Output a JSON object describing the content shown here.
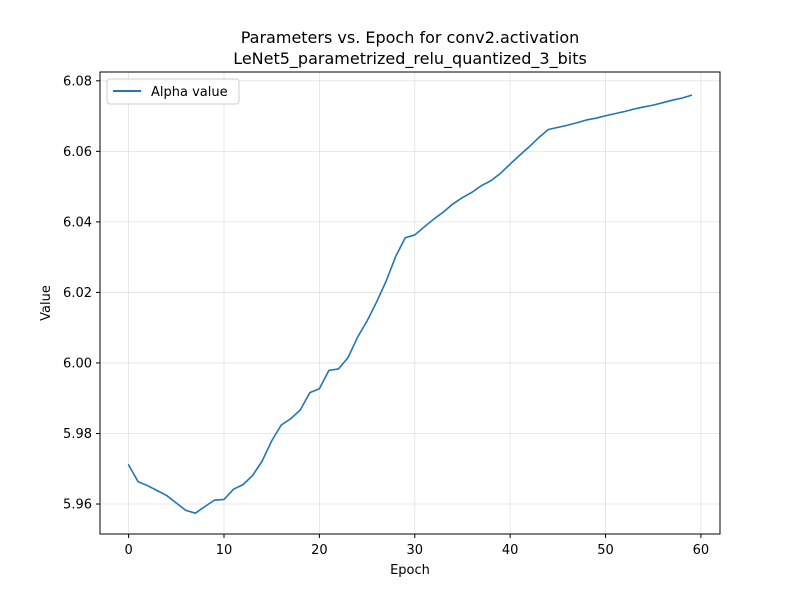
{
  "chart_data": {
    "type": "line",
    "title_line1": "Parameters vs. Epoch for conv2.activation",
    "title_line2": "LeNet5_parametrized_relu_quantized_3_bits",
    "xlabel": "Epoch",
    "ylabel": "Value",
    "xlim": [
      -3,
      62
    ],
    "ylim": [
      5.9515,
      6.0825
    ],
    "xticks": [
      0,
      10,
      20,
      30,
      40,
      50,
      60
    ],
    "yticks": [
      5.96,
      5.98,
      6.0,
      6.02,
      6.04,
      6.06,
      6.08
    ],
    "ytick_labels": [
      "5.96",
      "5.98",
      "6.00",
      "6.02",
      "6.04",
      "6.06",
      "6.08"
    ],
    "grid": true,
    "legend_position": "upper-left",
    "series": [
      {
        "name": "Alpha value",
        "color": "#1f77b4",
        "x": [
          0,
          1,
          2,
          3,
          4,
          5,
          6,
          7,
          8,
          9,
          10,
          11,
          12,
          13,
          14,
          15,
          16,
          17,
          18,
          19,
          20,
          21,
          22,
          23,
          24,
          25,
          26,
          27,
          28,
          29,
          30,
          31,
          32,
          33,
          34,
          35,
          36,
          37,
          38,
          39,
          40,
          41,
          42,
          43,
          44,
          45,
          46,
          47,
          48,
          49,
          50,
          51,
          52,
          53,
          54,
          55,
          56,
          57,
          58,
          59
        ],
        "y": [
          5.9711,
          5.9663,
          5.9652,
          5.9638,
          5.9624,
          5.9603,
          5.9582,
          5.9574,
          5.9593,
          5.9611,
          5.9613,
          5.9642,
          5.9655,
          5.9681,
          5.9722,
          5.9779,
          5.9824,
          5.9842,
          5.9867,
          5.9916,
          5.9927,
          5.9979,
          5.9983,
          6.0015,
          6.0073,
          6.0119,
          6.0173,
          6.0232,
          6.0302,
          6.0355,
          6.0363,
          6.0386,
          6.0408,
          6.0428,
          6.0451,
          6.0469,
          6.0484,
          6.0503,
          6.0517,
          6.0538,
          6.0564,
          6.0589,
          6.0613,
          6.0639,
          6.0662,
          6.0668,
          6.0674,
          6.0681,
          6.0689,
          6.0694,
          6.0701,
          6.0707,
          6.0713,
          6.072,
          6.0726,
          6.0731,
          6.0738,
          6.0745,
          6.0751,
          6.0759
        ]
      }
    ]
  }
}
